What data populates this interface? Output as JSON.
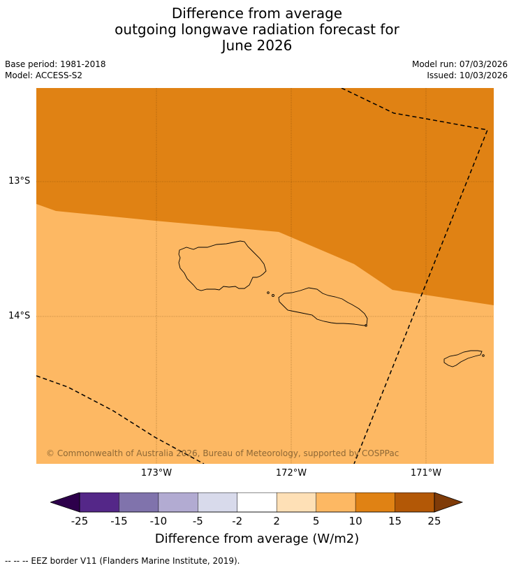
{
  "title": {
    "line1": "Difference from average",
    "line2": "outgoing longwave radiation forecast for",
    "line3": "June 2026"
  },
  "meta": {
    "base_period": "Base period: 1981-2018",
    "model": "Model: ACCESS-S2",
    "model_run": "Model run: 07/03/2026",
    "issued": "Issued: 10/03/2026"
  },
  "map": {
    "lat_labels": [
      "13°S",
      "14°S"
    ],
    "lon_labels": [
      "173°W",
      "172°W",
      "171°W"
    ],
    "copyright": "© Commonwealth of Australia 2026, Bureau of Meteorology, supported by COSPPac",
    "colors": {
      "high_anomaly": "#e08214",
      "moderate_anomaly": "#fdb863",
      "coastline": "#000000",
      "eez_border": "#000000"
    }
  },
  "colorbar": {
    "ticks": [
      "-25",
      "-15",
      "-10",
      "-5",
      "-2",
      "2",
      "5",
      "10",
      "15",
      "25"
    ],
    "colors": [
      "#2d004b",
      "#542788",
      "#8073ac",
      "#b2abd2",
      "#d8daeb",
      "#ffffff",
      "#fee0b6",
      "#fdb863",
      "#e08214",
      "#b35806",
      "#7f3b08"
    ],
    "label": "Difference from average (W/m2)"
  },
  "footer": {
    "text": "--  --  -- EEZ border V11 (Flanders Marine Institute, 2019)."
  }
}
